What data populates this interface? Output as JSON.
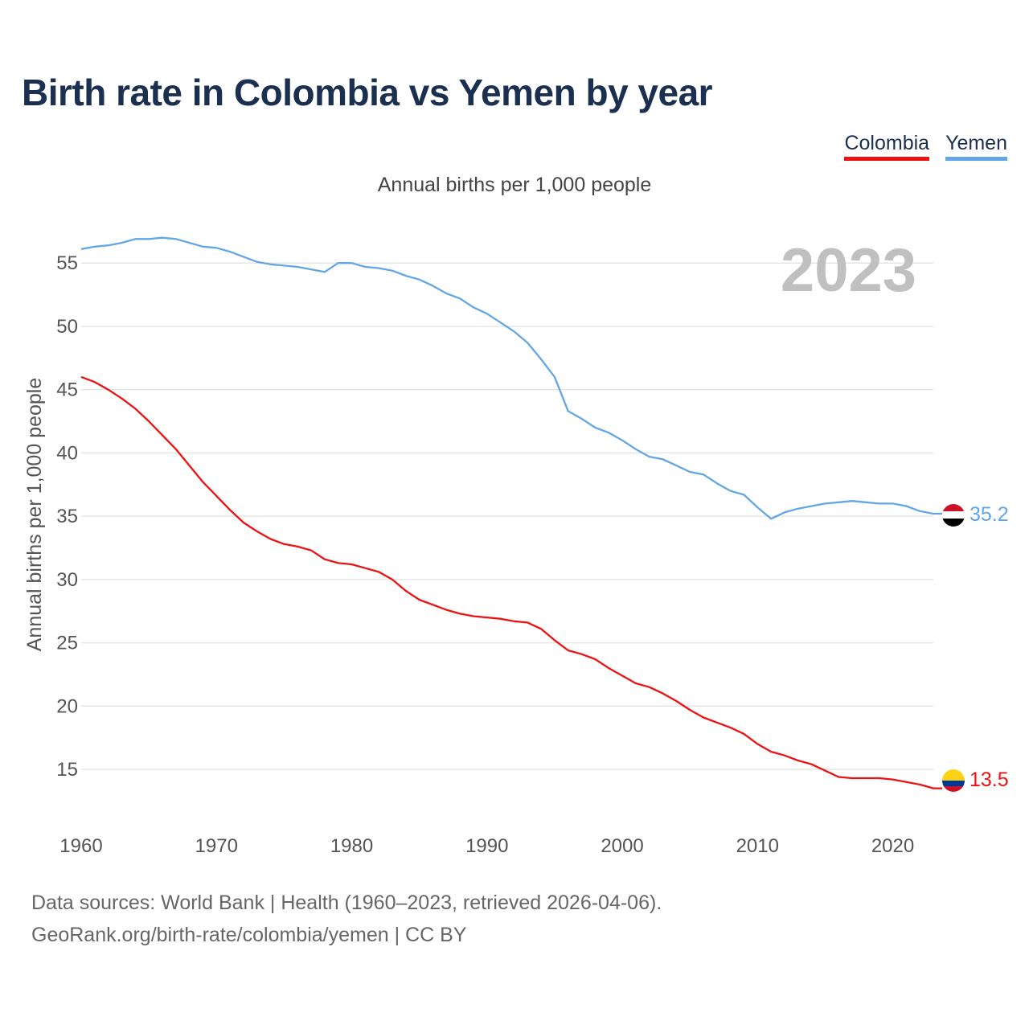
{
  "title": "Birth rate in Colombia vs Yemen by year",
  "subtitle": "Annual births per 1,000 people",
  "legend": [
    {
      "name": "Colombia",
      "color": "#ee1111"
    },
    {
      "name": "Yemen",
      "color": "#63a6e6"
    }
  ],
  "footer": {
    "line1": "Data sources: World Bank | Health (1960–2023, retrieved 2026-04-06).",
    "line2": "GeoRank.org/birth-rate/colombia/yemen | CC BY"
  },
  "chart_data": {
    "type": "line",
    "title": "Birth rate in Colombia vs Yemen by year",
    "xlabel": "",
    "ylabel": "Annual births per 1,000 people",
    "xlim": [
      1960,
      2023
    ],
    "ylim": [
      11,
      58
    ],
    "year_watermark": "2023",
    "x_ticks": [
      1960,
      1970,
      1980,
      1990,
      2000,
      2010,
      2020
    ],
    "y_ticks": [
      15,
      20,
      25,
      30,
      35,
      40,
      45,
      50,
      55
    ],
    "grid": true,
    "x": [
      1960,
      1961,
      1962,
      1963,
      1964,
      1965,
      1966,
      1967,
      1968,
      1969,
      1970,
      1971,
      1972,
      1973,
      1974,
      1975,
      1976,
      1977,
      1978,
      1979,
      1980,
      1981,
      1982,
      1983,
      1984,
      1985,
      1986,
      1987,
      1988,
      1989,
      1990,
      1991,
      1992,
      1993,
      1994,
      1995,
      1996,
      1997,
      1998,
      1999,
      2000,
      2001,
      2002,
      2003,
      2004,
      2005,
      2006,
      2007,
      2008,
      2009,
      2010,
      2011,
      2012,
      2013,
      2014,
      2015,
      2016,
      2017,
      2018,
      2019,
      2020,
      2021,
      2022,
      2023
    ],
    "series": [
      {
        "name": "Colombia",
        "color": "#ee1111",
        "end_label": "13.5",
        "values": [
          46.0,
          45.6,
          45.0,
          44.3,
          43.5,
          42.5,
          41.4,
          40.3,
          39.0,
          37.7,
          36.6,
          35.5,
          34.5,
          33.8,
          33.2,
          32.8,
          32.6,
          32.3,
          31.6,
          31.3,
          31.2,
          30.9,
          30.6,
          30.0,
          29.1,
          28.4,
          28.0,
          27.6,
          27.3,
          27.1,
          27.0,
          26.9,
          26.7,
          26.6,
          26.1,
          25.2,
          24.4,
          24.1,
          23.7,
          23.0,
          22.4,
          21.8,
          21.5,
          21.0,
          20.4,
          19.7,
          19.1,
          18.7,
          18.3,
          17.8,
          17.0,
          16.4,
          16.1,
          15.7,
          15.4,
          14.9,
          14.4,
          14.3,
          14.3,
          14.3,
          14.2,
          14.0,
          13.8,
          13.5
        ]
      },
      {
        "name": "Yemen",
        "color": "#63a6e6",
        "end_label": "35.2",
        "values": [
          56.1,
          56.3,
          56.4,
          56.6,
          56.9,
          56.9,
          57.0,
          56.9,
          56.6,
          56.3,
          56.2,
          55.9,
          55.5,
          55.1,
          54.9,
          54.8,
          54.7,
          54.5,
          54.3,
          55.0,
          55.0,
          54.7,
          54.6,
          54.4,
          54.0,
          53.7,
          53.2,
          52.6,
          52.2,
          51.5,
          51.0,
          50.3,
          49.6,
          48.7,
          47.4,
          46.0,
          43.3,
          42.7,
          42.0,
          41.6,
          41.0,
          40.3,
          39.7,
          39.5,
          39.0,
          38.5,
          38.3,
          37.6,
          37.0,
          36.7,
          35.7,
          34.8,
          35.3,
          35.6,
          35.8,
          36.0,
          36.1,
          36.2,
          36.1,
          36.0,
          36.0,
          35.8,
          35.4,
          35.2
        ]
      }
    ]
  }
}
